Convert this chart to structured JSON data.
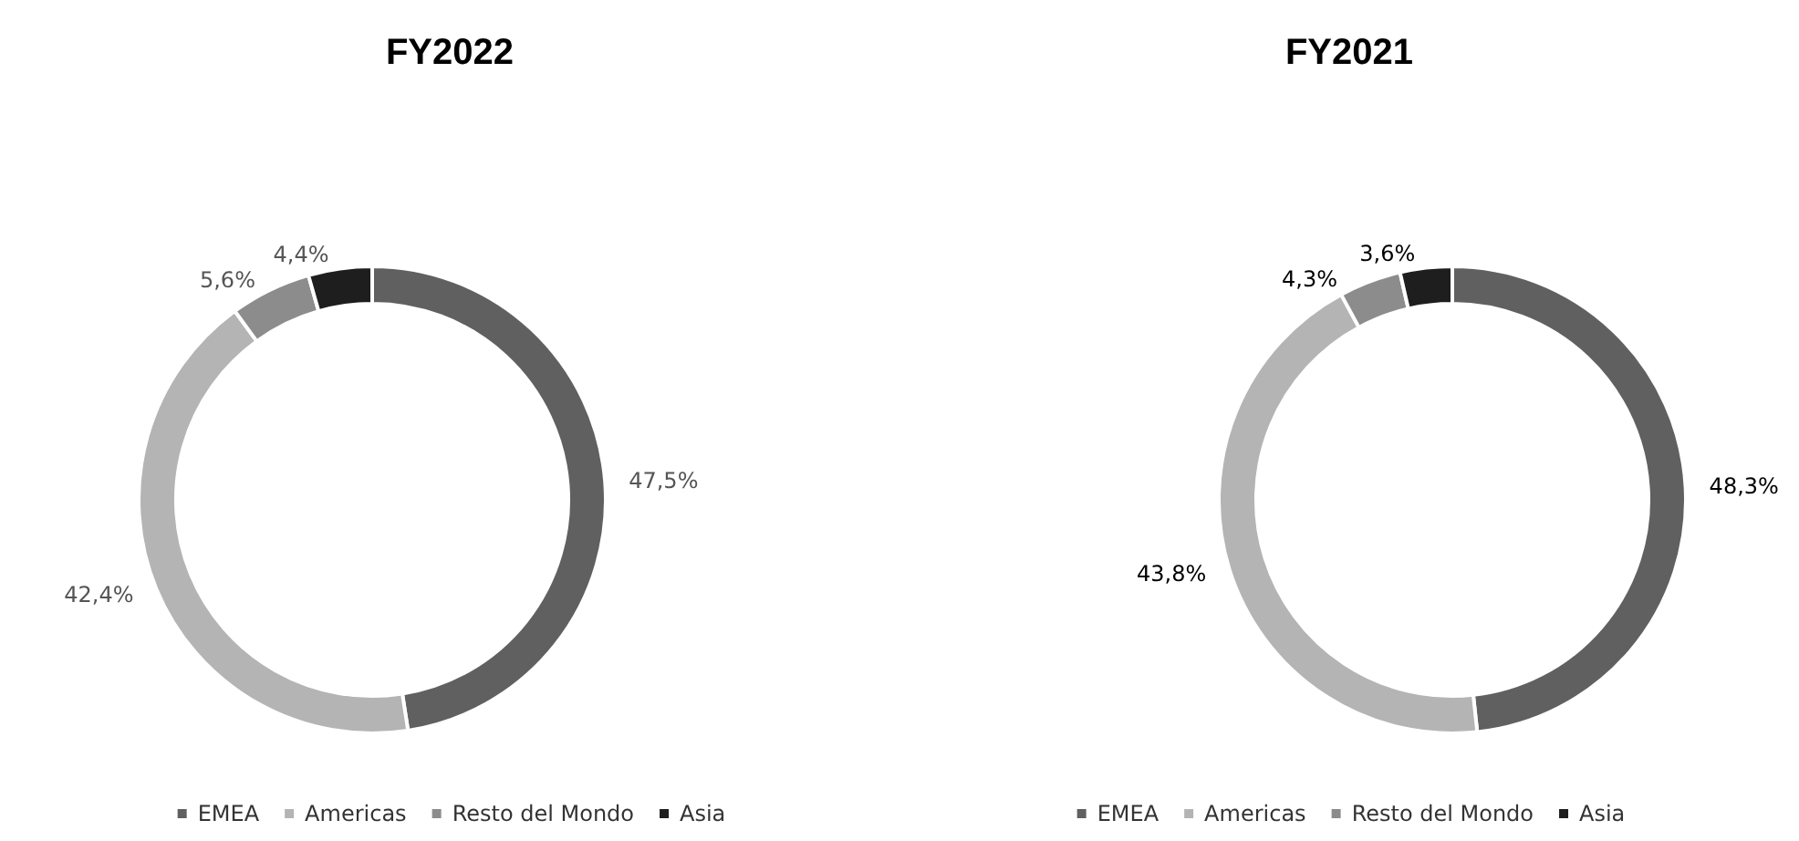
{
  "chart_data": [
    {
      "type": "donut",
      "title": "FY2022",
      "categories": [
        "EMEA",
        "Americas",
        "Resto del Mondo",
        "Asia"
      ],
      "values": [
        47.5,
        42.4,
        5.6,
        4.4
      ],
      "value_labels": [
        "47,5%",
        "42,4%",
        "5,6%",
        "4,4%"
      ],
      "colors": [
        "#606060",
        "#b4b4b4",
        "#8c8c8c",
        "#1e1e1e"
      ],
      "legend": "bottom"
    },
    {
      "type": "donut",
      "title": "FY2021",
      "categories": [
        "EMEA",
        "Americas",
        "Resto del Mondo",
        "Asia"
      ],
      "values": [
        48.3,
        43.8,
        4.3,
        3.6
      ],
      "value_labels": [
        "48,3%",
        "43,8%",
        "4,3%",
        "3,6%"
      ],
      "colors": [
        "#606060",
        "#b4b4b4",
        "#8c8c8c",
        "#1e1e1e"
      ],
      "legend": "bottom"
    }
  ]
}
